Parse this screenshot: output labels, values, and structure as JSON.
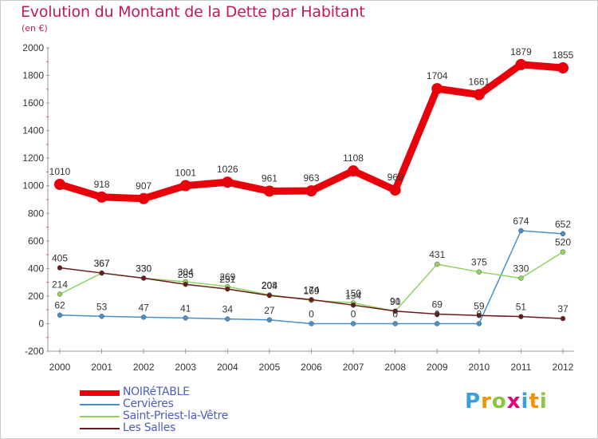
{
  "header": {
    "title": "Evolution du Montant de la Dette par Habitant",
    "subtitle": "(en €)"
  },
  "brand": {
    "text": "Proxiti"
  },
  "chart_data": {
    "type": "line",
    "x": [
      "2000",
      "2001",
      "2002",
      "2003",
      "2004",
      "2005",
      "2006",
      "2007",
      "2008",
      "2009",
      "2010",
      "2011",
      "2012"
    ],
    "ylim": [
      -200,
      2000
    ],
    "yticks": [
      -200,
      0,
      200,
      400,
      600,
      800,
      1000,
      1200,
      1400,
      1600,
      1800,
      2000
    ],
    "grid": false,
    "legend_position": "bottom-left",
    "series": [
      {
        "name": "NOIRéTABLE",
        "color": "#e8000b",
        "values": [
          1010,
          918,
          907,
          1001,
          1026,
          961,
          963,
          1108,
          969,
          1704,
          1661,
          1879,
          1855
        ]
      },
      {
        "name": "Cervières",
        "color": "#4a8fc9",
        "values": [
          62,
          53,
          47,
          41,
          34,
          27,
          0,
          0,
          0,
          0,
          0,
          674,
          652
        ]
      },
      {
        "name": "Saint-Priest-la-Vêtre",
        "color": "#8fd460",
        "values": [
          214,
          367,
          330,
          304,
          269,
          208,
          169,
          150,
          90,
          431,
          375,
          330,
          520
        ]
      },
      {
        "name": "Les Salles",
        "color": "#6b1a1a",
        "values": [
          405,
          367,
          330,
          285,
          251,
          204,
          174,
          134,
          91,
          69,
          59,
          51,
          37
        ]
      }
    ]
  }
}
